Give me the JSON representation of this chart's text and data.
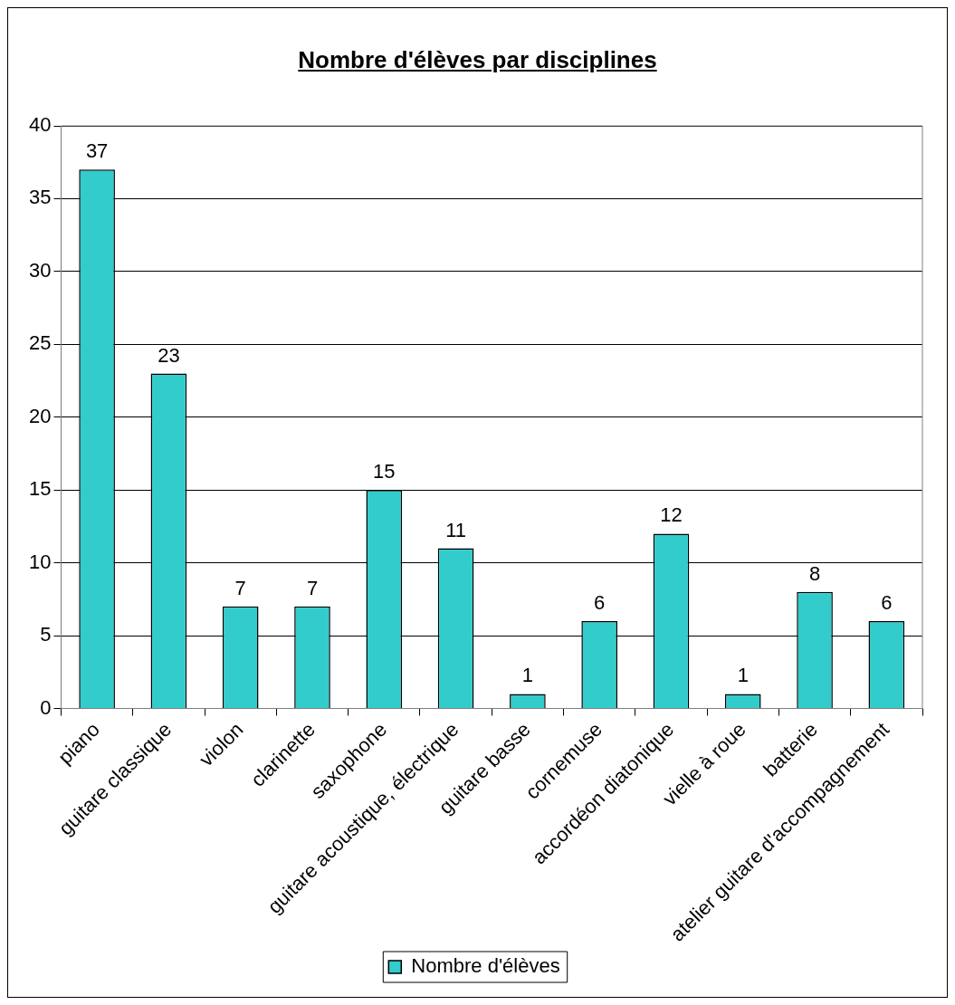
{
  "chart_data": {
    "type": "bar",
    "title": "Nombre d'élèves par disciplines",
    "categories": [
      "piano",
      "guitare classique",
      "violon",
      "clarinette",
      "saxophone",
      "guitare acoustique, électrique",
      "guitare basse",
      "cornemuse",
      "accordéon diatonique",
      "vielle à roue",
      "batterie",
      "atelier guitare d'accompagnement"
    ],
    "series": [
      {
        "name": "Nombre d'élèves",
        "color": "#33cccc",
        "values": [
          37,
          23,
          7,
          7,
          15,
          11,
          1,
          6,
          12,
          1,
          8,
          6
        ]
      }
    ],
    "ylim": [
      0,
      40
    ],
    "yticks": [
      0,
      5,
      10,
      15,
      20,
      25,
      30,
      35,
      40
    ],
    "grid": "y",
    "legend": "bottom",
    "data_labels": true
  }
}
